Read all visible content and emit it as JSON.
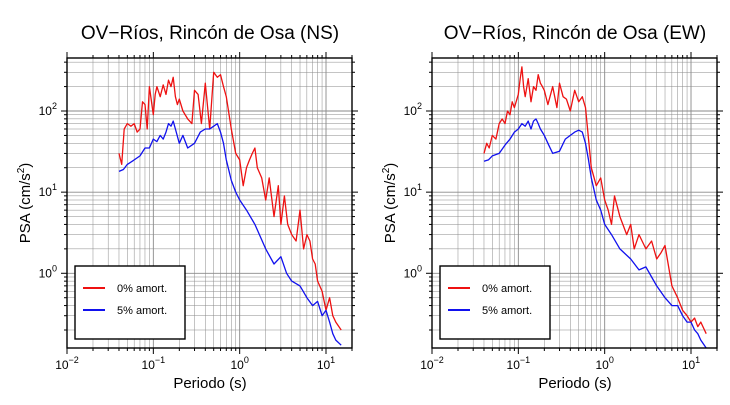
{
  "chart_data": [
    {
      "type": "line",
      "title": "OV−Ríos, Rincón de Osa (NS)",
      "xlabel": "Periodo (s)",
      "ylabel": "PSA (cm/s",
      "ylabel_sup": "2",
      "ylabel_close": ")",
      "xscale": "log",
      "yscale": "log",
      "xlim": [
        0.01,
        20
      ],
      "ylim": [
        0.12,
        450
      ],
      "grid": true,
      "legend_position": "bottom-left",
      "x_ticks": [
        {
          "base": "10",
          "exp": "−2",
          "value": 0.01
        },
        {
          "base": "10",
          "exp": "−1",
          "value": 0.1
        },
        {
          "base": "10",
          "exp": "0",
          "value": 1
        },
        {
          "base": "10",
          "exp": "1",
          "value": 10
        }
      ],
      "y_ticks": [
        {
          "base": "10",
          "exp": "0",
          "value": 1
        },
        {
          "base": "10",
          "exp": "1",
          "value": 10
        },
        {
          "base": "10",
          "exp": "2",
          "value": 100
        }
      ],
      "series": [
        {
          "name": "0% amort.",
          "color": "#ee1111",
          "x": [
            0.04,
            0.043,
            0.046,
            0.05,
            0.055,
            0.06,
            0.065,
            0.07,
            0.075,
            0.08,
            0.085,
            0.09,
            0.1,
            0.105,
            0.11,
            0.12,
            0.13,
            0.14,
            0.15,
            0.16,
            0.17,
            0.18,
            0.19,
            0.2,
            0.22,
            0.25,
            0.28,
            0.3,
            0.33,
            0.36,
            0.4,
            0.45,
            0.5,
            0.55,
            0.6,
            0.65,
            0.7,
            0.8,
            0.9,
            1.0,
            1.1,
            1.2,
            1.3,
            1.4,
            1.5,
            1.6,
            1.8,
            2.0,
            2.2,
            2.5,
            2.8,
            3.0,
            3.3,
            3.6,
            4.0,
            4.5,
            5.0,
            5.5,
            6.0,
            6.5,
            7.0,
            7.5,
            8.0,
            9.0,
            10.0,
            11.0,
            12.0,
            13.0,
            15.0
          ],
          "y": [
            30,
            22,
            60,
            70,
            65,
            70,
            55,
            60,
            130,
            120,
            60,
            200,
            90,
            160,
            200,
            150,
            210,
            160,
            240,
            200,
            260,
            150,
            120,
            140,
            100,
            80,
            70,
            180,
            160,
            70,
            220,
            60,
            300,
            260,
            280,
            200,
            150,
            60,
            30,
            25,
            12,
            20,
            25,
            30,
            35,
            20,
            15,
            8,
            15,
            5,
            12,
            4,
            9,
            4,
            3,
            2.5,
            6,
            2,
            3,
            2.5,
            1.5,
            1.3,
            0.8,
            0.6,
            0.35,
            0.5,
            0.3,
            0.25,
            0.2
          ]
        },
        {
          "name": "5% amort.",
          "color": "#1111ee",
          "x": [
            0.04,
            0.045,
            0.05,
            0.06,
            0.07,
            0.08,
            0.09,
            0.1,
            0.11,
            0.12,
            0.13,
            0.14,
            0.15,
            0.16,
            0.17,
            0.18,
            0.2,
            0.22,
            0.25,
            0.3,
            0.35,
            0.4,
            0.45,
            0.5,
            0.55,
            0.6,
            0.65,
            0.7,
            0.8,
            0.9,
            1.0,
            1.2,
            1.5,
            2.0,
            2.5,
            3.0,
            3.5,
            4.0,
            5.0,
            6.0,
            7.0,
            8.0,
            9.0,
            10.0,
            11.0,
            12.0,
            13.0,
            15.0
          ],
          "y": [
            18,
            19,
            22,
            25,
            28,
            35,
            35,
            45,
            42,
            50,
            45,
            55,
            70,
            65,
            75,
            60,
            40,
            50,
            35,
            40,
            55,
            60,
            60,
            65,
            70,
            55,
            40,
            25,
            14,
            10,
            8,
            6,
            4,
            2.0,
            1.3,
            1.6,
            1.0,
            0.8,
            0.7,
            0.5,
            0.4,
            0.45,
            0.3,
            0.35,
            0.25,
            0.18,
            0.15,
            0.13
          ]
        }
      ]
    },
    {
      "type": "line",
      "title": "OV−Ríos, Rincón de Osa (EW)",
      "xlabel": "Periodo (s)",
      "ylabel": "PSA (cm/s",
      "ylabel_sup": "2",
      "ylabel_close": ")",
      "xscale": "log",
      "yscale": "log",
      "xlim": [
        0.01,
        20
      ],
      "ylim": [
        0.12,
        450
      ],
      "grid": true,
      "legend_position": "bottom-left",
      "x_ticks": [
        {
          "base": "10",
          "exp": "−2",
          "value": 0.01
        },
        {
          "base": "10",
          "exp": "−1",
          "value": 0.1
        },
        {
          "base": "10",
          "exp": "0",
          "value": 1
        },
        {
          "base": "10",
          "exp": "1",
          "value": 10
        }
      ],
      "y_ticks": [
        {
          "base": "10",
          "exp": "0",
          "value": 1
        },
        {
          "base": "10",
          "exp": "1",
          "value": 10
        },
        {
          "base": "10",
          "exp": "2",
          "value": 100
        }
      ],
      "series": [
        {
          "name": "0% amort.",
          "color": "#ee1111",
          "x": [
            0.04,
            0.043,
            0.046,
            0.05,
            0.055,
            0.06,
            0.065,
            0.07,
            0.075,
            0.08,
            0.085,
            0.09,
            0.1,
            0.105,
            0.11,
            0.115,
            0.12,
            0.13,
            0.14,
            0.15,
            0.16,
            0.17,
            0.18,
            0.19,
            0.2,
            0.22,
            0.25,
            0.28,
            0.3,
            0.33,
            0.36,
            0.4,
            0.45,
            0.5,
            0.55,
            0.6,
            0.7,
            0.8,
            0.9,
            1.0,
            1.1,
            1.2,
            1.3,
            1.5,
            1.8,
            2.0,
            2.2,
            2.5,
            3.0,
            3.5,
            4.0,
            4.5,
            5.0,
            6.0,
            7.0,
            8.0,
            9.0,
            10.0,
            11.0,
            12.0,
            13.0,
            15.0
          ],
          "y": [
            30,
            40,
            35,
            50,
            45,
            70,
            80,
            70,
            100,
            90,
            130,
            110,
            160,
            250,
            350,
            200,
            150,
            250,
            130,
            200,
            180,
            280,
            220,
            200,
            180,
            120,
            200,
            110,
            220,
            150,
            140,
            100,
            180,
            130,
            150,
            110,
            20,
            12,
            15,
            8,
            6,
            4,
            9,
            5,
            3,
            4,
            2,
            3,
            2,
            2.5,
            1.5,
            1.8,
            2.2,
            0.7,
            0.5,
            0.35,
            0.3,
            0.25,
            0.28,
            0.22,
            0.25,
            0.18
          ]
        },
        {
          "name": "5% amort.",
          "color": "#1111ee",
          "x": [
            0.04,
            0.045,
            0.05,
            0.06,
            0.07,
            0.08,
            0.09,
            0.1,
            0.11,
            0.12,
            0.13,
            0.14,
            0.15,
            0.16,
            0.17,
            0.18,
            0.2,
            0.22,
            0.25,
            0.3,
            0.35,
            0.4,
            0.45,
            0.5,
            0.55,
            0.6,
            0.65,
            0.7,
            0.8,
            0.9,
            1.0,
            1.2,
            1.5,
            2.0,
            2.5,
            3.0,
            3.5,
            4.0,
            5.0,
            6.0,
            7.0,
            8.0,
            9.0,
            10.0,
            11.0,
            12.0,
            13.0,
            15.0
          ],
          "y": [
            24,
            25,
            28,
            30,
            38,
            45,
            55,
            60,
            70,
            65,
            75,
            60,
            75,
            80,
            70,
            60,
            50,
            40,
            30,
            32,
            45,
            50,
            55,
            58,
            55,
            40,
            25,
            15,
            8,
            6,
            4,
            3,
            2.0,
            1.5,
            1.1,
            1.2,
            0.9,
            0.7,
            0.5,
            0.4,
            0.4,
            0.3,
            0.25,
            0.25,
            0.2,
            0.18,
            0.15,
            0.12
          ]
        }
      ]
    }
  ]
}
